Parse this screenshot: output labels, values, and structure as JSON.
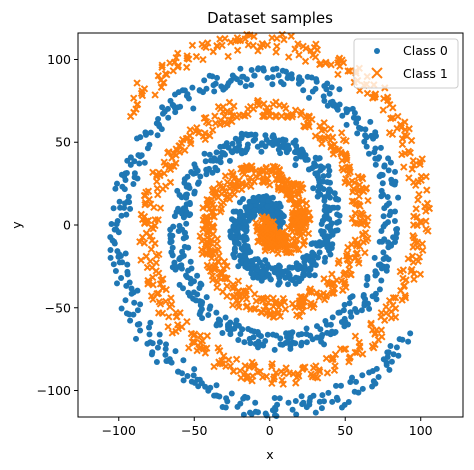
{
  "chart_data": {
    "type": "scatter",
    "title": "Dataset samples",
    "xlabel": "x",
    "ylabel": "y",
    "xlim": [
      -127,
      128
    ],
    "ylim": [
      -116,
      116
    ],
    "xticks": [
      -100,
      -50,
      0,
      50,
      100
    ],
    "yticks": [
      -100,
      -50,
      0,
      50,
      100
    ],
    "xtick_labels": [
      "−100",
      "−50",
      "0",
      "50",
      "100"
    ],
    "ytick_labels": [
      "−100",
      "−50",
      "0",
      "50",
      "100"
    ],
    "grid": false,
    "legend_position": "top-right",
    "series": [
      {
        "name": "Class 0",
        "marker": "circle",
        "color": "#1f77b4",
        "spiral": {
          "center_x": 0,
          "center_y": 0,
          "radius_step_per_radian": 6.37,
          "theta_start_rad": 0.3,
          "theta_end_rad": 18.2,
          "phase_rad": 0,
          "band_width": 6
        }
      },
      {
        "name": "Class 1",
        "marker": "x",
        "color": "#ff7f0e",
        "spiral": {
          "center_x": 0,
          "center_y": 0,
          "radius_step_per_radian": 6.37,
          "theta_start_rad": 0.3,
          "theta_end_rad": 18.2,
          "phase_rad": 3.14159,
          "band_width": 6
        }
      }
    ]
  }
}
